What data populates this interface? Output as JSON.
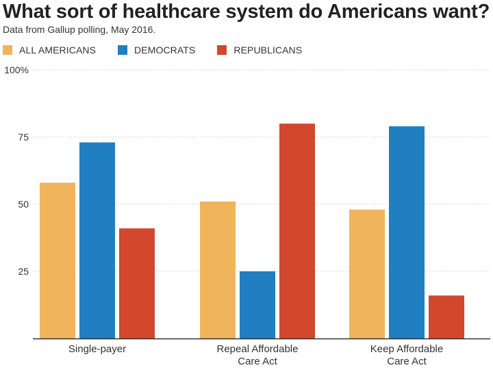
{
  "header": {
    "title": "What sort of healthcare system do Americans want?",
    "subtitle": "Data from Gallup polling, May 2016."
  },
  "colors": {
    "all_americans": "#f0b45c",
    "democrats": "#1f7fc0",
    "republicans": "#d2472e",
    "grid": "#cccccc",
    "axis": "#333333"
  },
  "chart_data": {
    "type": "bar",
    "title": "What sort of healthcare system do Americans want?",
    "subtitle": "Data from Gallup polling, May 2016.",
    "xlabel": "",
    "ylabel": "",
    "ylim": [
      0,
      100
    ],
    "yticks": [
      25,
      50,
      75,
      100
    ],
    "ytick_labels": [
      "25",
      "50",
      "75",
      "100%"
    ],
    "grid": true,
    "legend_position": "top-left",
    "categories": [
      [
        "Single-payer"
      ],
      [
        "Repeal Affordable",
        "Care Act"
      ],
      [
        "Keep Affordable",
        "Care Act"
      ]
    ],
    "series": [
      {
        "name": "ALL AMERICANS",
        "color": "#f0b45c",
        "values": [
          58,
          51,
          48
        ]
      },
      {
        "name": "DEMOCRATS",
        "color": "#1f7fc0",
        "values": [
          73,
          25,
          79
        ]
      },
      {
        "name": "REPUBLICANS",
        "color": "#d2472e",
        "values": [
          41,
          80,
          16
        ]
      }
    ]
  }
}
